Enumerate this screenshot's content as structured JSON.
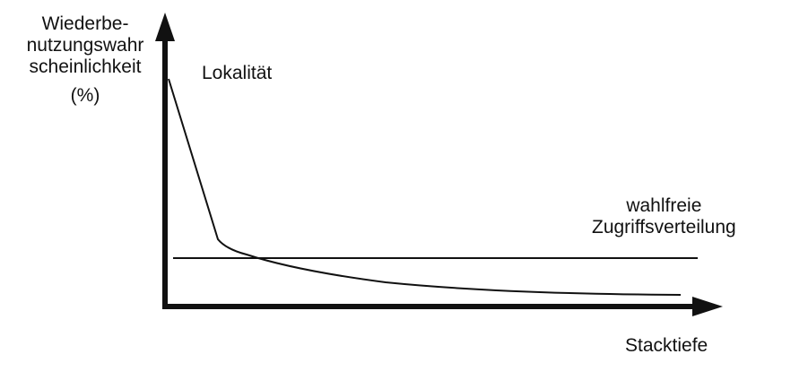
{
  "diagram": {
    "y_axis_label": {
      "lines": [
        "Wiederbe-",
        "nutzungswahr",
        "scheinlichkeit"
      ],
      "unit": "(%)"
    },
    "x_axis_label": "Stacktiefe",
    "curve_label": "Lokalität",
    "baseline_label": {
      "lines": [
        "wahlfreie",
        "Zugriffsverteilung"
      ]
    },
    "colors": {
      "line": "#111111",
      "background": "#ffffff"
    }
  }
}
